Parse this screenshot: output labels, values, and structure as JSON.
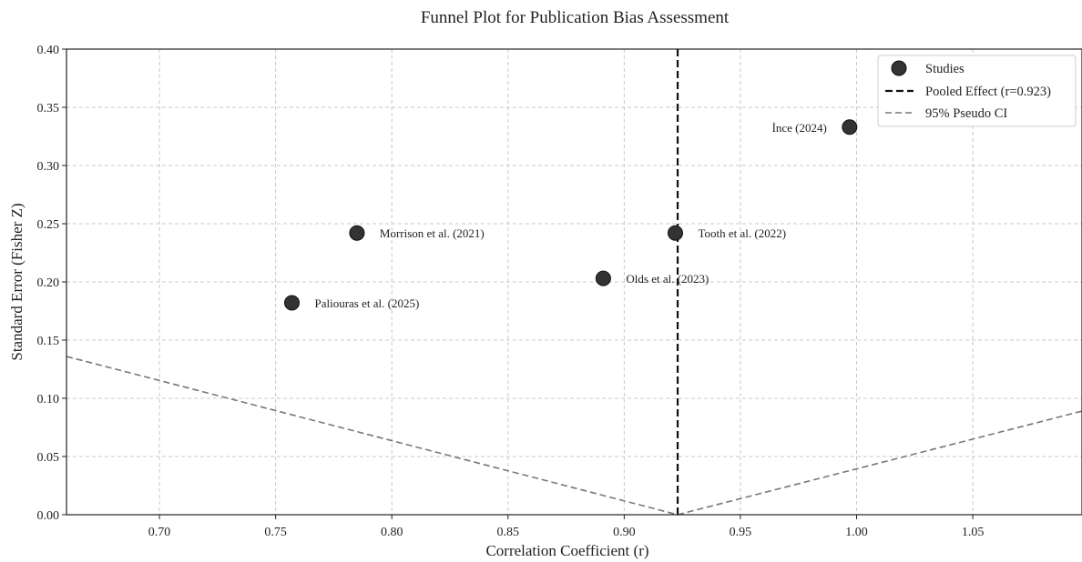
{
  "chart_data": {
    "type": "scatter",
    "title": "Funnel Plot for Publication Bias Assessment",
    "xlabel": "Correlation Coefficient (r)",
    "ylabel": "Standard Error (Fisher Z)",
    "xlim": [
      0.66,
      1.097
    ],
    "ylim": [
      0.0,
      0.4
    ],
    "x_ticks": [
      0.7,
      0.75,
      0.8,
      0.85,
      0.9,
      0.95,
      1.0,
      1.05
    ],
    "x_tick_labels": [
      "0.70",
      "0.75",
      "0.80",
      "0.85",
      "0.90",
      "0.95",
      "1.00",
      "1.05"
    ],
    "y_ticks": [
      0.0,
      0.05,
      0.1,
      0.15,
      0.2,
      0.25,
      0.3,
      0.35,
      0.4
    ],
    "y_tick_labels": [
      "0.00",
      "0.05",
      "0.10",
      "0.15",
      "0.20",
      "0.25",
      "0.30",
      "0.35",
      "0.40"
    ],
    "grid": true,
    "legend_position": "top-right",
    "points": [
      {
        "label": "İnce (2024)",
        "x": 0.997,
        "y": 0.333,
        "label_side": "left"
      },
      {
        "label": "Morrison et al. (2021)",
        "x": 0.785,
        "y": 0.242,
        "label_side": "right"
      },
      {
        "label": "Tooth et al. (2022)",
        "x": 0.922,
        "y": 0.242,
        "label_side": "right"
      },
      {
        "label": "Olds et al. (2023)",
        "x": 0.891,
        "y": 0.203,
        "label_side": "right"
      },
      {
        "label": "Paliouras et al. (2025)",
        "x": 0.757,
        "y": 0.182,
        "label_side": "right"
      }
    ],
    "pooled_effect": 0.923,
    "pseudo_ci": {
      "left": [
        [
          0.66,
          0.136
        ],
        [
          0.923,
          0.0
        ]
      ],
      "right": [
        [
          0.923,
          0.0
        ],
        [
          1.097,
          0.089
        ]
      ]
    },
    "legend": [
      {
        "kind": "marker",
        "label": "Studies"
      },
      {
        "kind": "pooled",
        "label": "Pooled Effect (r=0.923)"
      },
      {
        "kind": "ci",
        "label": "95% Pseudo CI"
      }
    ],
    "colors": {
      "points": "#333333",
      "pooled": "#111111",
      "ci": "#777777",
      "grid": "#c8c8c8"
    }
  }
}
